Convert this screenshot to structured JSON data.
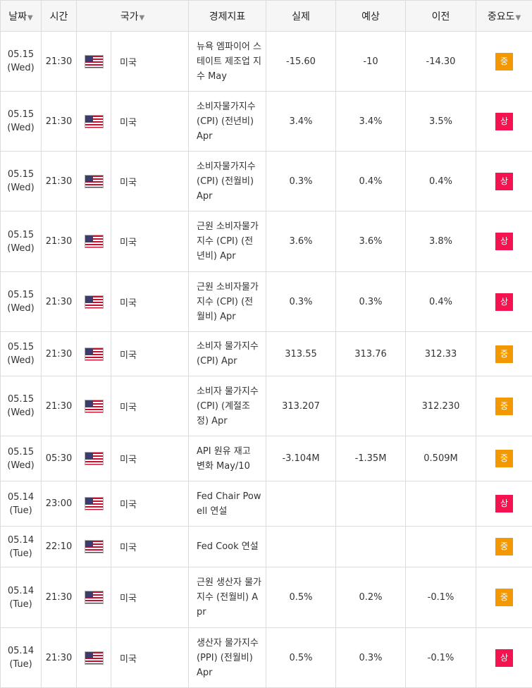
{
  "headers": {
    "date": "날짜",
    "time": "시간",
    "country": "국가",
    "indicator": "경제지표",
    "actual": "실제",
    "forecast": "예상",
    "previous": "이전",
    "importance": "중요도",
    "sort_arrow": "▼"
  },
  "colors": {
    "high": "#f5134f",
    "medium": "#f39800"
  },
  "rows": [
    {
      "date": "05.15",
      "day": "(Wed)",
      "time": "21:30",
      "country": "미국",
      "flag": "us-flag-icon",
      "indicator": "뉴욕 엠파이어 스테이트 제조업 지수 May",
      "actual": "-15.60",
      "forecast": "-10",
      "previous": "-14.30",
      "importance": "중",
      "level": "medium"
    },
    {
      "date": "05.15",
      "day": "(Wed)",
      "time": "21:30",
      "country": "미국",
      "flag": "us-flag-icon",
      "indicator": "소비자물가지수 (CPI) (전년비) Apr",
      "actual": "3.4%",
      "forecast": "3.4%",
      "previous": "3.5%",
      "importance": "상",
      "level": "high"
    },
    {
      "date": "05.15",
      "day": "(Wed)",
      "time": "21:30",
      "country": "미국",
      "flag": "us-flag-icon",
      "indicator": "소비자물가지수 (CPI) (전월비) Apr",
      "actual": "0.3%",
      "forecast": "0.4%",
      "previous": "0.4%",
      "importance": "상",
      "level": "high"
    },
    {
      "date": "05.15",
      "day": "(Wed)",
      "time": "21:30",
      "country": "미국",
      "flag": "us-flag-icon",
      "indicator": "근원 소비자물가지수 (CPI) (전년비) Apr",
      "actual": "3.6%",
      "forecast": "3.6%",
      "previous": "3.8%",
      "importance": "상",
      "level": "high"
    },
    {
      "date": "05.15",
      "day": "(Wed)",
      "time": "21:30",
      "country": "미국",
      "flag": "us-flag-icon",
      "indicator": "근원 소비자물가지수 (CPI) (전월비) Apr",
      "actual": "0.3%",
      "forecast": "0.3%",
      "previous": "0.4%",
      "importance": "상",
      "level": "high"
    },
    {
      "date": "05.15",
      "day": "(Wed)",
      "time": "21:30",
      "country": "미국",
      "flag": "us-flag-icon",
      "indicator": "소비자 물가지수(CPI) Apr",
      "actual": "313.55",
      "forecast": "313.76",
      "previous": "312.33",
      "importance": "중",
      "level": "medium"
    },
    {
      "date": "05.15",
      "day": "(Wed)",
      "time": "21:30",
      "country": "미국",
      "flag": "us-flag-icon",
      "indicator": "소비자 물가지수(CPI) (계절조정) Apr",
      "actual": "313.207",
      "forecast": "",
      "previous": "312.230",
      "importance": "중",
      "level": "medium"
    },
    {
      "date": "05.15",
      "day": "(Wed)",
      "time": "05:30",
      "country": "미국",
      "flag": "us-flag-icon",
      "indicator": "API 원유 재고 변화 May/10",
      "actual": "-3.104M",
      "forecast": "-1.35M",
      "previous": "0.509M",
      "importance": "중",
      "level": "medium"
    },
    {
      "date": "05.14",
      "day": "(Tue)",
      "time": "23:00",
      "country": "미국",
      "flag": "us-flag-icon",
      "indicator": "Fed Chair Powell 연설",
      "actual": "",
      "forecast": "",
      "previous": "",
      "importance": "상",
      "level": "high"
    },
    {
      "date": "05.14",
      "day": "(Tue)",
      "time": "22:10",
      "country": "미국",
      "flag": "us-flag-icon",
      "indicator": "Fed Cook 연설",
      "actual": "",
      "forecast": "",
      "previous": "",
      "importance": "중",
      "level": "medium"
    },
    {
      "date": "05.14",
      "day": "(Tue)",
      "time": "21:30",
      "country": "미국",
      "flag": "us-flag-icon",
      "indicator": "근원 생산자 물가지수 (전월비) Apr",
      "actual": "0.5%",
      "forecast": "0.2%",
      "previous": "-0.1%",
      "importance": "중",
      "level": "medium"
    },
    {
      "date": "05.14",
      "day": "(Tue)",
      "time": "21:30",
      "country": "미국",
      "flag": "us-flag-icon",
      "indicator": "생산자 물가지수(PPI) (전월비) Apr",
      "actual": "0.5%",
      "forecast": "0.3%",
      "previous": "-0.1%",
      "importance": "상",
      "level": "high"
    }
  ]
}
